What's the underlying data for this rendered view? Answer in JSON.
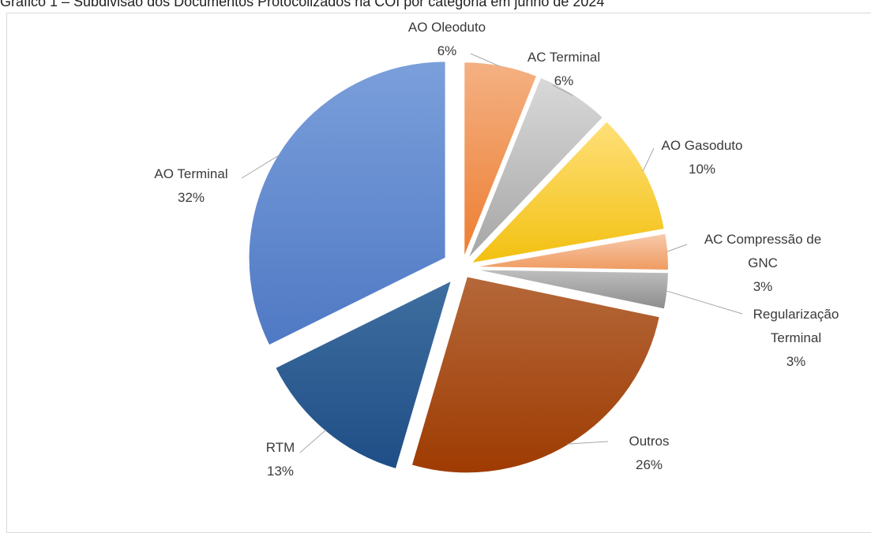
{
  "caption": "Gráfico 1 – Subdivisão dos Documentos Protocolizados na COI por categoria em junho de 2024",
  "chart_data": {
    "type": "pie",
    "title": "",
    "slices": [
      {
        "label_lines": [
          "AO Oleoduto",
          "6%"
        ],
        "value": 6,
        "color_light": "#f4b183",
        "color_dark": "#ed7d31"
      },
      {
        "label_lines": [
          "AC Terminal",
          "6%"
        ],
        "value": 6,
        "color_light": "#d9d9d9",
        "color_dark": "#a5a5a5"
      },
      {
        "label_lines": [
          "AO Gasoduto",
          "10%"
        ],
        "value": 10,
        "color_light": "#ffe07a",
        "color_dark": "#f2c010"
      },
      {
        "label_lines": [
          "AC Compressão de",
          "GNC",
          "3%"
        ],
        "value": 3,
        "color_light": "#f8cbad",
        "color_dark": "#ef9a60"
      },
      {
        "label_lines": [
          "Regularização",
          "Terminal",
          "3%"
        ],
        "value": 3,
        "color_light": "#bfbfbf",
        "color_dark": "#8c8c8c"
      },
      {
        "label_lines": [
          "Outros",
          "26%"
        ],
        "value": 26,
        "color_light": "#b5683a",
        "color_dark": "#9e3b02"
      },
      {
        "label_lines": [
          "RTM",
          "13%"
        ],
        "value": 13,
        "color_light": "#3f6ea0",
        "color_dark": "#1f4e86"
      },
      {
        "label_lines": [
          "AO Terminal",
          "32%"
        ],
        "value": 32,
        "color_light": "#7b9fdb",
        "color_dark": "#4f79c4"
      }
    ]
  }
}
